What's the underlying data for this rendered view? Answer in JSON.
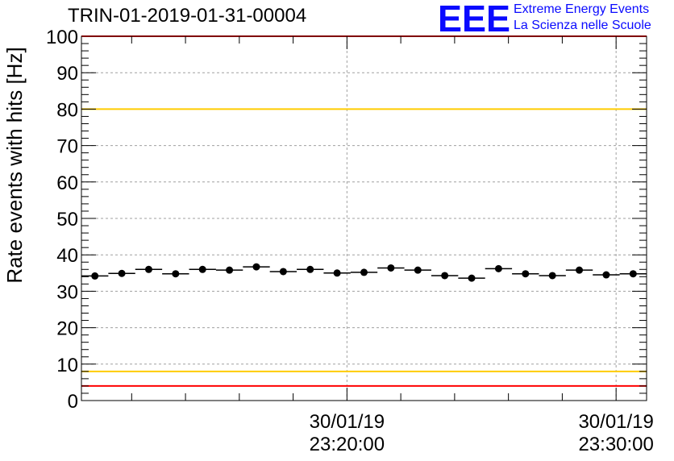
{
  "title": "TRIN-01-2019-01-31-00004",
  "logo": {
    "mark": "EEE",
    "line1": "Extreme Energy Events",
    "line2": "La Scienza nelle Scuole",
    "color": "#0a0aff"
  },
  "chart_data": {
    "type": "scatter",
    "title": "TRIN-01-2019-01-31-00004",
    "xlabel": "",
    "ylabel": "Rate events with hits [Hz]",
    "ylim": [
      0,
      100
    ],
    "yticks": [
      0,
      10,
      20,
      30,
      40,
      50,
      60,
      70,
      80,
      90,
      100
    ],
    "xlim": [
      "30/01/19 23:10:08",
      "30/01/19 23:31:08"
    ],
    "xticks": [
      {
        "date": "30/01/19",
        "time": "23:20:00"
      },
      {
        "date": "30/01/19",
        "time": "23:30:00"
      }
    ],
    "grid": true,
    "series": [
      {
        "marker": "circle",
        "color": "#000000",
        "x": [
          "23:10:38",
          "23:11:38",
          "23:12:38",
          "23:13:38",
          "23:14:38",
          "23:15:38",
          "23:16:38",
          "23:17:38",
          "23:18:38",
          "23:19:38",
          "23:20:38",
          "23:21:38",
          "23:22:38",
          "23:23:38",
          "23:24:38",
          "23:25:38",
          "23:26:38",
          "23:27:38",
          "23:28:38",
          "23:29:38",
          "23:30:38"
        ],
        "y": [
          34.2,
          34.9,
          36.0,
          34.8,
          36.0,
          35.8,
          36.7,
          35.4,
          36.0,
          35.0,
          35.2,
          36.4,
          35.8,
          34.3,
          33.6,
          36.2,
          34.8,
          34.3,
          35.8,
          34.5,
          34.8
        ],
        "x_bin_width_s": 60
      }
    ],
    "reference_lines": [
      {
        "y": 100,
        "color": "#ff0000"
      },
      {
        "y": 80,
        "color": "#ffcc00"
      },
      {
        "y": 8,
        "color": "#ffcc00"
      },
      {
        "y": 4,
        "color": "#ff0000"
      }
    ]
  }
}
